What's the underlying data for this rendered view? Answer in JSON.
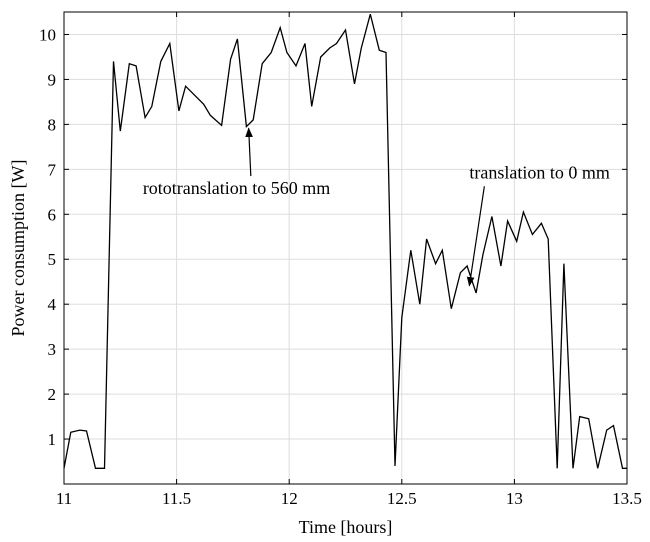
{
  "chart_data": {
    "type": "line",
    "xlabel": "Time [hours]",
    "ylabel": "Power consumption [W]",
    "xlim": [
      11,
      13.5
    ],
    "ylim": [
      0,
      10.5
    ],
    "xticks": [
      "11",
      "11.5",
      "12",
      "12.5",
      "13",
      "13.5"
    ],
    "yticks": [
      "1",
      "2",
      "3",
      "4",
      "5",
      "6",
      "7",
      "8",
      "9",
      "10"
    ],
    "grid": true,
    "colors": {
      "line": "#000000",
      "grid": "#dddddd",
      "axes": "#000000"
    },
    "series": [
      {
        "x": [
          11.0,
          11.03,
          11.07,
          11.1,
          11.14,
          11.18,
          11.22,
          11.25,
          11.29,
          11.32,
          11.36,
          11.39,
          11.43,
          11.47,
          11.51,
          11.54,
          11.58,
          11.62,
          11.65,
          11.7,
          11.74,
          11.77,
          11.81,
          11.84,
          11.88,
          11.92,
          11.96,
          11.99,
          12.03,
          12.07,
          12.1,
          12.14,
          12.18,
          12.21,
          12.25,
          12.29,
          12.32,
          12.36,
          12.4,
          12.43,
          12.47,
          12.5,
          12.54,
          12.58,
          12.61,
          12.65,
          12.68,
          12.72,
          12.76,
          12.79,
          12.83,
          12.86,
          12.9,
          12.94,
          12.97,
          13.01,
          13.04,
          13.08,
          13.12,
          13.15,
          13.19,
          13.22,
          13.26,
          13.29,
          13.33,
          13.37,
          13.41,
          13.44,
          13.48,
          13.5
        ],
        "y": [
          0.35,
          1.15,
          1.2,
          1.18,
          0.35,
          0.35,
          9.4,
          7.85,
          9.35,
          9.3,
          8.15,
          8.4,
          9.4,
          9.8,
          8.3,
          8.85,
          8.65,
          8.45,
          8.2,
          7.98,
          9.45,
          9.9,
          7.95,
          8.1,
          9.35,
          9.6,
          10.15,
          9.6,
          9.3,
          9.8,
          8.4,
          9.5,
          9.7,
          9.8,
          10.1,
          8.9,
          9.7,
          10.45,
          9.65,
          9.6,
          0.4,
          3.7,
          5.2,
          4.0,
          5.45,
          4.9,
          5.2,
          3.9,
          4.7,
          4.85,
          4.25,
          5.1,
          5.95,
          4.85,
          5.85,
          5.4,
          6.05,
          5.55,
          5.8,
          5.45,
          0.35,
          4.9,
          0.35,
          1.5,
          1.45,
          0.35,
          1.2,
          1.3,
          0.35,
          0.35
        ]
      }
    ],
    "annotations": [
      {
        "text": "rototranslation to 560 mm",
        "x": 11.82,
        "y": 8.0,
        "text_x": 11.35,
        "text_y": 6.45
      },
      {
        "text": "translation to 0 mm",
        "x": 12.8,
        "y": 4.5,
        "text_x": 12.8,
        "text_y": 6.8
      }
    ]
  }
}
